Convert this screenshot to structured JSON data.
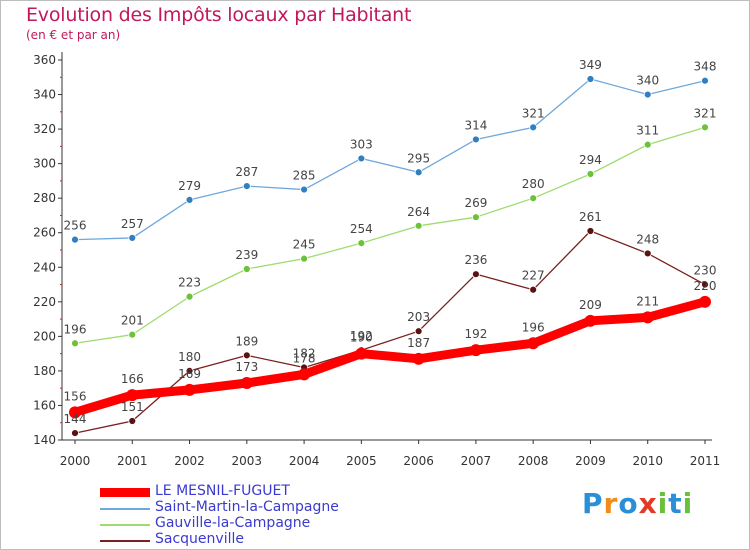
{
  "header": {
    "title": "Evolution des Impôts locaux par Habitant",
    "subtitle": "(en € et par an)"
  },
  "logo": {
    "text": "Proxiti",
    "letters": [
      {
        "ch": "P",
        "color": "#2a8fd6"
      },
      {
        "ch": "r",
        "color": "#f08c1a"
      },
      {
        "ch": "o",
        "color": "#2a8fd6"
      },
      {
        "ch": "x",
        "color": "#e23a24"
      },
      {
        "ch": "i",
        "color": "#6cbf3a"
      },
      {
        "ch": "t",
        "color": "#2a8fd6"
      },
      {
        "ch": "i",
        "color": "#6cbf3a"
      }
    ]
  },
  "chart_data": {
    "type": "line",
    "title": "Evolution des Impôts locaux par Habitant",
    "subtitle": "(en € et par an)",
    "xlabel": "",
    "ylabel": "",
    "categories": [
      "2000",
      "2001",
      "2002",
      "2003",
      "2004",
      "2005",
      "2006",
      "2007",
      "2008",
      "2009",
      "2010",
      "2011"
    ],
    "ylim": [
      140,
      360
    ],
    "yticks": [
      140,
      160,
      180,
      200,
      220,
      240,
      260,
      280,
      300,
      320,
      340,
      360
    ],
    "grid": false,
    "legend_position": "bottom-left",
    "series": [
      {
        "name": "Saint-Martin-la-Campagne",
        "color": "#6fa8dc",
        "marker": "#2f7fc1",
        "values": [
          256,
          257,
          279,
          287,
          285,
          303,
          295,
          314,
          321,
          349,
          340,
          348
        ]
      },
      {
        "name": "Gauville-la-Campagne",
        "color": "#9edc70",
        "marker": "#6cc23a",
        "values": [
          196,
          201,
          223,
          239,
          245,
          254,
          264,
          269,
          280,
          294,
          311,
          321
        ]
      },
      {
        "name": "Sacquenville",
        "color": "#7a2020",
        "marker": "#5a1212",
        "values": [
          144,
          151,
          180,
          189,
          182,
          192,
          203,
          236,
          227,
          261,
          248,
          230
        ]
      },
      {
        "name": "LE MESNIL-FUGUET",
        "color": "#ff0000",
        "marker": "#ff0000",
        "values": [
          156,
          166,
          169,
          173,
          178,
          190,
          187,
          192,
          196,
          209,
          211,
          220
        ]
      }
    ],
    "legend_order": [
      "LE MESNIL-FUGUET",
      "Saint-Martin-la-Campagne",
      "Gauville-la-Campagne",
      "Sacquenville"
    ]
  }
}
